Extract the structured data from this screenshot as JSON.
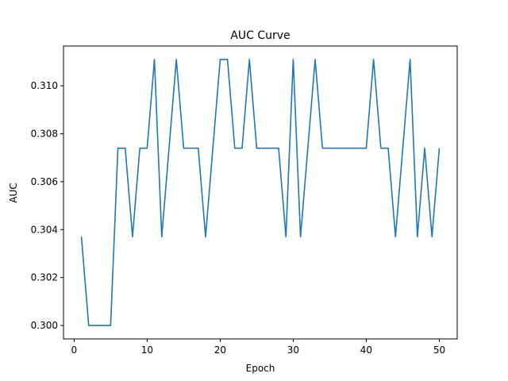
{
  "chart_data": {
    "type": "line",
    "title": "AUC Curve",
    "xlabel": "Epoch",
    "ylabel": "AUC",
    "xlim": [
      -1.45,
      52.45
    ],
    "ylim": [
      0.29944,
      0.31166
    ],
    "xticks": [
      0,
      10,
      20,
      30,
      40,
      50
    ],
    "yticks": [
      0.3,
      0.302,
      0.304,
      0.306,
      0.308,
      0.31
    ],
    "ytick_labels": [
      "0.300",
      "0.302",
      "0.304",
      "0.306",
      "0.308",
      "0.310"
    ],
    "grid": false,
    "line_color": "#1f77b4",
    "series": [
      {
        "x": [
          1,
          2,
          3,
          4,
          5,
          6,
          7,
          8,
          9,
          10,
          11,
          12,
          13,
          14,
          15,
          16,
          17,
          18,
          19,
          20,
          21,
          22,
          23,
          24,
          25,
          26,
          27,
          28,
          29,
          30,
          31,
          32,
          33,
          34,
          35,
          36,
          37,
          38,
          39,
          40,
          41,
          42,
          43,
          44,
          45,
          46,
          47,
          48,
          49,
          50
        ],
        "values": [
          0.3037,
          0.3,
          0.3,
          0.3,
          0.3,
          0.3074,
          0.3074,
          0.3037,
          0.3074,
          0.3074,
          0.3111,
          0.3037,
          0.3074,
          0.3111,
          0.3074,
          0.3074,
          0.3074,
          0.3037,
          0.3074,
          0.3111,
          0.3111,
          0.3074,
          0.3074,
          0.3111,
          0.3074,
          0.3074,
          0.3074,
          0.3074,
          0.3037,
          0.3111,
          0.3037,
          0.3074,
          0.3111,
          0.3074,
          0.3074,
          0.3074,
          0.3074,
          0.3074,
          0.3074,
          0.3074,
          0.3111,
          0.3074,
          0.3074,
          0.3037,
          0.3074,
          0.3111,
          0.3037,
          0.3074,
          0.3037,
          0.3074
        ]
      }
    ]
  }
}
